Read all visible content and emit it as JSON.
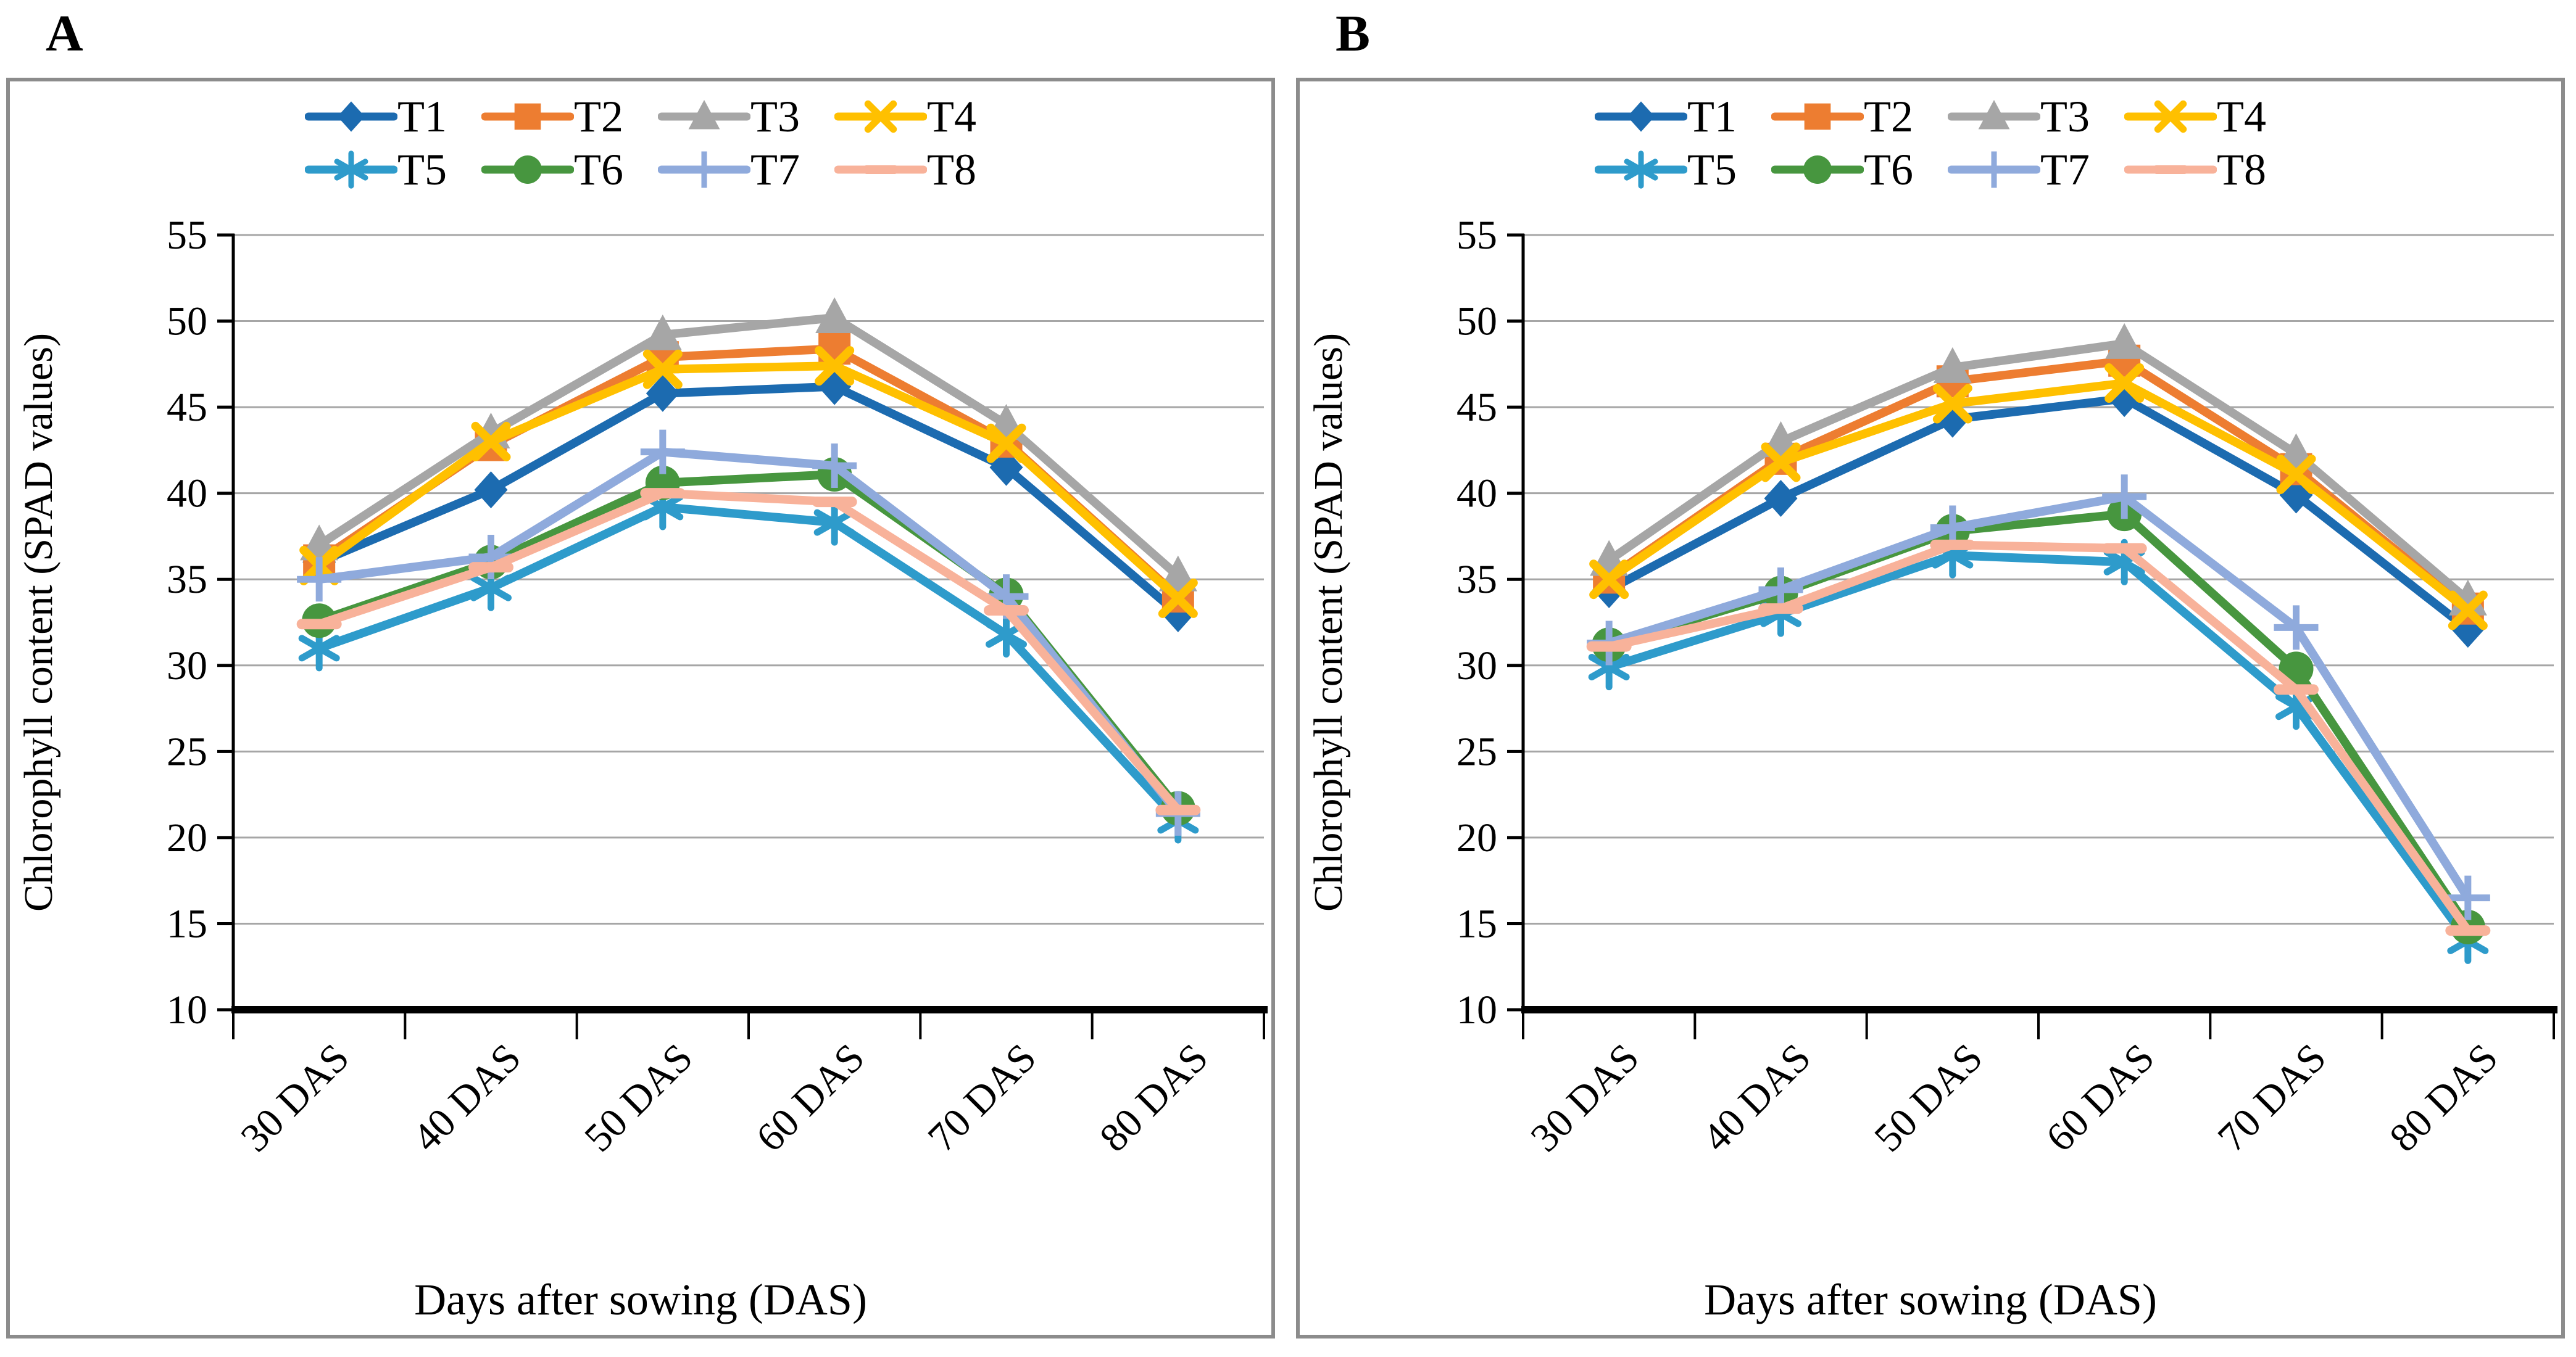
{
  "chart_data": [
    {
      "panel_label": "A",
      "type": "line",
      "categories": [
        "30 DAS",
        "40 DAS",
        "50 DAS",
        "60 DAS",
        "70 DAS",
        "80 DAS"
      ],
      "xlabel": "Days after sowing (DAS)",
      "ylabel": "Chlorophyll content (SPAD values)",
      "ylim": [
        10,
        55
      ],
      "ytick_step": 5,
      "yticks": [
        10,
        15,
        20,
        25,
        30,
        35,
        40,
        45,
        50,
        55
      ],
      "grid": true,
      "legend_position": "top",
      "series": [
        {
          "name": "T1",
          "marker": "diamond",
          "color": "#1C6BB0",
          "values": [
            36.0,
            40.2,
            45.8,
            46.2,
            41.5,
            33.0
          ]
        },
        {
          "name": "T2",
          "marker": "square",
          "color": "#ED7D31",
          "values": [
            36.1,
            42.8,
            47.9,
            48.4,
            43.0,
            34.0
          ]
        },
        {
          "name": "T3",
          "marker": "triangle",
          "color": "#A6A6A6",
          "values": [
            37.0,
            43.5,
            49.2,
            50.2,
            44.0,
            35.2
          ]
        },
        {
          "name": "T4",
          "marker": "x",
          "color": "#FFC000",
          "values": [
            35.8,
            43.0,
            47.2,
            47.4,
            42.9,
            33.9
          ]
        },
        {
          "name": "T5",
          "marker": "asterisk",
          "color": "#2E9BCB",
          "values": [
            31.0,
            34.5,
            39.2,
            38.3,
            31.8,
            21.0
          ]
        },
        {
          "name": "T6",
          "marker": "circle",
          "color": "#47963F",
          "values": [
            32.6,
            36.0,
            40.6,
            41.1,
            34.1,
            21.7
          ]
        },
        {
          "name": "T7",
          "marker": "plus",
          "color": "#8FAADC",
          "values": [
            35.0,
            36.3,
            42.4,
            41.6,
            34.0,
            21.4
          ]
        },
        {
          "name": "T8",
          "marker": "dash",
          "color": "#F8B29A",
          "values": [
            32.4,
            35.7,
            40.0,
            39.5,
            33.2,
            21.6
          ]
        }
      ]
    },
    {
      "panel_label": "B",
      "type": "line",
      "categories": [
        "30 DAS",
        "40 DAS",
        "50 DAS",
        "60 DAS",
        "70 DAS",
        "80 DAS"
      ],
      "xlabel": "Days after sowing (DAS)",
      "ylabel": "Chlorophyll content (SPAD values)",
      "ylim": [
        10,
        55
      ],
      "ytick_step": 5,
      "yticks": [
        10,
        15,
        20,
        25,
        30,
        35,
        40,
        45,
        50,
        55
      ],
      "grid": true,
      "legend_position": "top",
      "series": [
        {
          "name": "T1",
          "marker": "diamond",
          "color": "#1C6BB0",
          "values": [
            34.4,
            39.7,
            44.3,
            45.5,
            39.9,
            32.1
          ]
        },
        {
          "name": "T2",
          "marker": "square",
          "color": "#ED7D31",
          "values": [
            35.1,
            42.0,
            46.5,
            47.7,
            41.4,
            33.3
          ]
        },
        {
          "name": "T3",
          "marker": "triangle",
          "color": "#A6A6A6",
          "values": [
            36.1,
            43.0,
            47.3,
            48.7,
            42.3,
            33.8
          ]
        },
        {
          "name": "T4",
          "marker": "x",
          "color": "#FFC000",
          "values": [
            35.0,
            41.8,
            45.2,
            46.4,
            41.1,
            33.2
          ]
        },
        {
          "name": "T5",
          "marker": "asterisk",
          "color": "#2E9BCB",
          "values": [
            29.9,
            33.0,
            36.4,
            36.0,
            27.6,
            14.0
          ]
        },
        {
          "name": "T6",
          "marker": "circle",
          "color": "#47963F",
          "values": [
            31.2,
            34.2,
            37.8,
            38.8,
            29.8,
            14.8
          ]
        },
        {
          "name": "T7",
          "marker": "plus",
          "color": "#8FAADC",
          "values": [
            31.3,
            34.4,
            38.0,
            39.8,
            32.2,
            16.5
          ]
        },
        {
          "name": "T8",
          "marker": "dash",
          "color": "#F8B29A",
          "values": [
            31.1,
            33.3,
            37.0,
            36.8,
            28.6,
            14.6
          ]
        }
      ]
    }
  ],
  "style_colors": {
    "panel_border": "#8c8c8c",
    "gridline": "#A6A6A6",
    "axis": "#000000"
  }
}
